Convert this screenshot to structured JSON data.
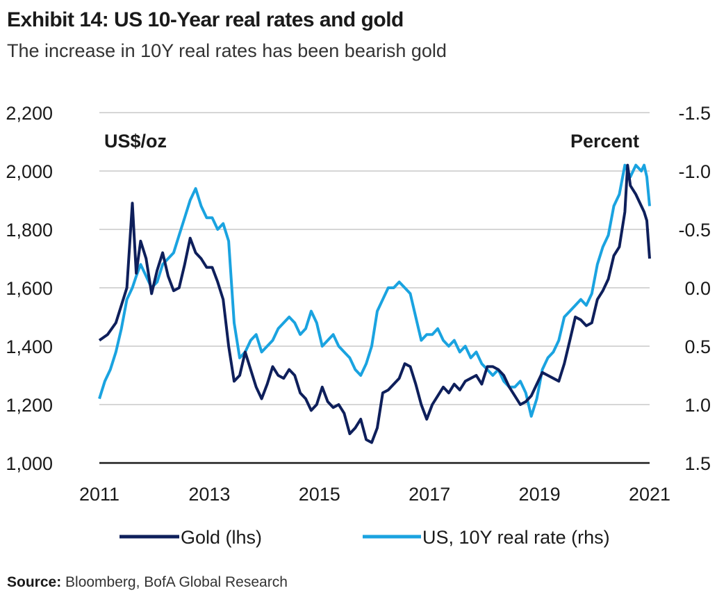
{
  "header": {
    "title": "Exhibit 14: US 10-Year real rates and gold",
    "subtitle": "The increase in 10Y real rates has been bearish gold"
  },
  "footer": {
    "source_label": "Source:",
    "source_text": "Bloomberg, BofA Global Research"
  },
  "colors": {
    "gold": "#0e1f5b",
    "real_rate": "#1aa3e0",
    "grid": "#c8c8c8",
    "axis": "#1a1a1a"
  },
  "chart_data": {
    "type": "line",
    "title": "Exhibit 14: US 10-Year real rates and gold",
    "subtitle": "The increase in 10Y real rates has been bearish gold",
    "left_unit": "US$/oz",
    "right_unit": "Percent",
    "x_ticks": [
      "2011",
      "2013",
      "2015",
      "2017",
      "2019",
      "2021"
    ],
    "left_ticks": [
      "1,000",
      "1,200",
      "1,400",
      "1,600",
      "1,800",
      "2,000",
      "2,200"
    ],
    "right_ticks": [
      "1.5",
      "1.0",
      "0.5",
      "0.0",
      "-0.5",
      "-1.0",
      "-1.5"
    ],
    "xlim": [
      2011,
      2021
    ],
    "ylim_left": [
      1000,
      2200
    ],
    "ylim_right": [
      1.5,
      -1.5
    ],
    "right_axis_inverted": true,
    "grid": true,
    "legend_position": "bottom",
    "series": [
      {
        "name": "Gold (lhs)",
        "axis": "left",
        "x": [
          2011.0,
          2011.15,
          2011.3,
          2011.4,
          2011.5,
          2011.6,
          2011.67,
          2011.75,
          2011.85,
          2011.95,
          2012.05,
          2012.15,
          2012.25,
          2012.35,
          2012.45,
          2012.55,
          2012.65,
          2012.75,
          2012.85,
          2012.95,
          2013.05,
          2013.15,
          2013.25,
          2013.35,
          2013.45,
          2013.55,
          2013.65,
          2013.75,
          2013.85,
          2013.95,
          2014.05,
          2014.15,
          2014.25,
          2014.35,
          2014.45,
          2014.55,
          2014.65,
          2014.75,
          2014.85,
          2014.95,
          2015.05,
          2015.15,
          2015.25,
          2015.35,
          2015.45,
          2015.55,
          2015.65,
          2015.75,
          2015.85,
          2015.95,
          2016.05,
          2016.15,
          2016.25,
          2016.35,
          2016.45,
          2016.55,
          2016.65,
          2016.75,
          2016.85,
          2016.95,
          2017.05,
          2017.15,
          2017.25,
          2017.35,
          2017.45,
          2017.55,
          2017.65,
          2017.75,
          2017.85,
          2017.95,
          2018.05,
          2018.15,
          2018.25,
          2018.35,
          2018.45,
          2018.55,
          2018.65,
          2018.75,
          2018.85,
          2018.95,
          2019.05,
          2019.15,
          2019.25,
          2019.35,
          2019.45,
          2019.55,
          2019.65,
          2019.75,
          2019.85,
          2019.95,
          2020.05,
          2020.15,
          2020.25,
          2020.35,
          2020.45,
          2020.55,
          2020.6,
          2020.65,
          2020.75,
          2020.85,
          2020.9,
          2020.95,
          2021.0
        ],
        "values": [
          1420,
          1440,
          1480,
          1540,
          1600,
          1890,
          1650,
          1760,
          1700,
          1580,
          1660,
          1720,
          1640,
          1590,
          1600,
          1680,
          1770,
          1720,
          1700,
          1670,
          1670,
          1620,
          1560,
          1400,
          1280,
          1300,
          1380,
          1320,
          1260,
          1220,
          1270,
          1330,
          1300,
          1290,
          1320,
          1300,
          1240,
          1220,
          1180,
          1200,
          1260,
          1210,
          1190,
          1200,
          1170,
          1100,
          1120,
          1150,
          1080,
          1070,
          1120,
          1240,
          1250,
          1270,
          1290,
          1340,
          1330,
          1270,
          1200,
          1150,
          1200,
          1230,
          1260,
          1240,
          1270,
          1250,
          1280,
          1290,
          1300,
          1270,
          1330,
          1330,
          1320,
          1300,
          1260,
          1230,
          1200,
          1210,
          1230,
          1270,
          1310,
          1300,
          1290,
          1280,
          1340,
          1420,
          1500,
          1490,
          1470,
          1480,
          1560,
          1590,
          1630,
          1710,
          1740,
          1860,
          2020,
          1950,
          1920,
          1880,
          1860,
          1830,
          1700
        ]
      },
      {
        "name": "US, 10Y real rate (rhs)",
        "axis": "right",
        "x": [
          2011.0,
          2011.1,
          2011.2,
          2011.3,
          2011.4,
          2011.5,
          2011.6,
          2011.67,
          2011.75,
          2011.85,
          2011.95,
          2012.05,
          2012.15,
          2012.25,
          2012.35,
          2012.45,
          2012.55,
          2012.65,
          2012.75,
          2012.85,
          2012.95,
          2013.05,
          2013.15,
          2013.25,
          2013.35,
          2013.45,
          2013.55,
          2013.65,
          2013.75,
          2013.85,
          2013.95,
          2014.05,
          2014.15,
          2014.25,
          2014.35,
          2014.45,
          2014.55,
          2014.65,
          2014.75,
          2014.85,
          2014.95,
          2015.05,
          2015.15,
          2015.25,
          2015.35,
          2015.45,
          2015.55,
          2015.65,
          2015.75,
          2015.85,
          2015.95,
          2016.05,
          2016.15,
          2016.25,
          2016.35,
          2016.45,
          2016.55,
          2016.65,
          2016.75,
          2016.85,
          2016.95,
          2017.05,
          2017.15,
          2017.25,
          2017.35,
          2017.45,
          2017.55,
          2017.65,
          2017.75,
          2017.85,
          2017.95,
          2018.05,
          2018.15,
          2018.25,
          2018.35,
          2018.45,
          2018.55,
          2018.65,
          2018.75,
          2018.85,
          2018.95,
          2019.05,
          2019.15,
          2019.25,
          2019.35,
          2019.45,
          2019.55,
          2019.65,
          2019.75,
          2019.85,
          2019.95,
          2020.05,
          2020.15,
          2020.25,
          2020.35,
          2020.45,
          2020.55,
          2020.65,
          2020.75,
          2020.85,
          2020.9,
          2020.95,
          2021.0
        ],
        "values": [
          0.95,
          0.8,
          0.7,
          0.55,
          0.35,
          0.1,
          0.0,
          -0.1,
          -0.2,
          -0.1,
          0.0,
          -0.05,
          -0.2,
          -0.25,
          -0.3,
          -0.45,
          -0.6,
          -0.75,
          -0.85,
          -0.7,
          -0.6,
          -0.6,
          -0.5,
          -0.55,
          -0.4,
          0.3,
          0.6,
          0.55,
          0.45,
          0.4,
          0.55,
          0.5,
          0.45,
          0.35,
          0.3,
          0.25,
          0.3,
          0.4,
          0.35,
          0.2,
          0.3,
          0.5,
          0.45,
          0.4,
          0.5,
          0.55,
          0.6,
          0.7,
          0.75,
          0.65,
          0.5,
          0.2,
          0.1,
          0.0,
          0.0,
          -0.05,
          0.0,
          0.05,
          0.25,
          0.45,
          0.4,
          0.4,
          0.35,
          0.45,
          0.5,
          0.45,
          0.55,
          0.5,
          0.6,
          0.55,
          0.65,
          0.7,
          0.75,
          0.7,
          0.8,
          0.85,
          0.85,
          0.8,
          0.9,
          1.1,
          0.95,
          0.7,
          0.6,
          0.55,
          0.45,
          0.25,
          0.2,
          0.15,
          0.1,
          0.15,
          0.05,
          -0.2,
          -0.35,
          -0.45,
          -0.7,
          -0.8,
          -1.05,
          -0.95,
          -1.05,
          -1.0,
          -1.05,
          -0.95,
          -0.7
        ]
      }
    ]
  }
}
